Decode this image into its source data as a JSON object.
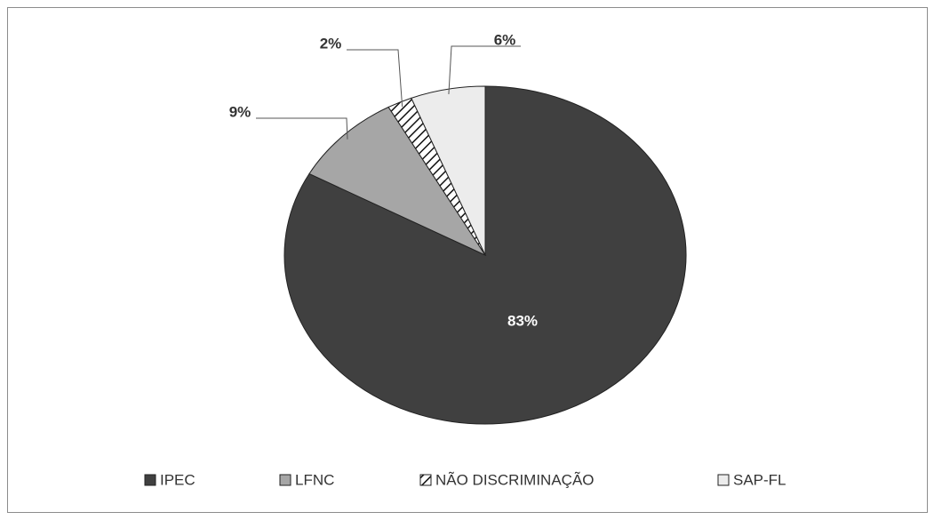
{
  "chart_data": {
    "type": "pie",
    "categories": [
      "IPEC",
      "LFNC",
      "NÃO DISCRIMINAÇÃO",
      "SAP-FL"
    ],
    "values": [
      83,
      9,
      2,
      6
    ],
    "value_labels": [
      "83%",
      "9%",
      "2%",
      "6%"
    ],
    "colors": [
      "#404040",
      "#a6a6a6",
      "#ffffff",
      "#ececec"
    ],
    "hatch": [
      false,
      false,
      true,
      false
    ],
    "legend": "bottom"
  }
}
